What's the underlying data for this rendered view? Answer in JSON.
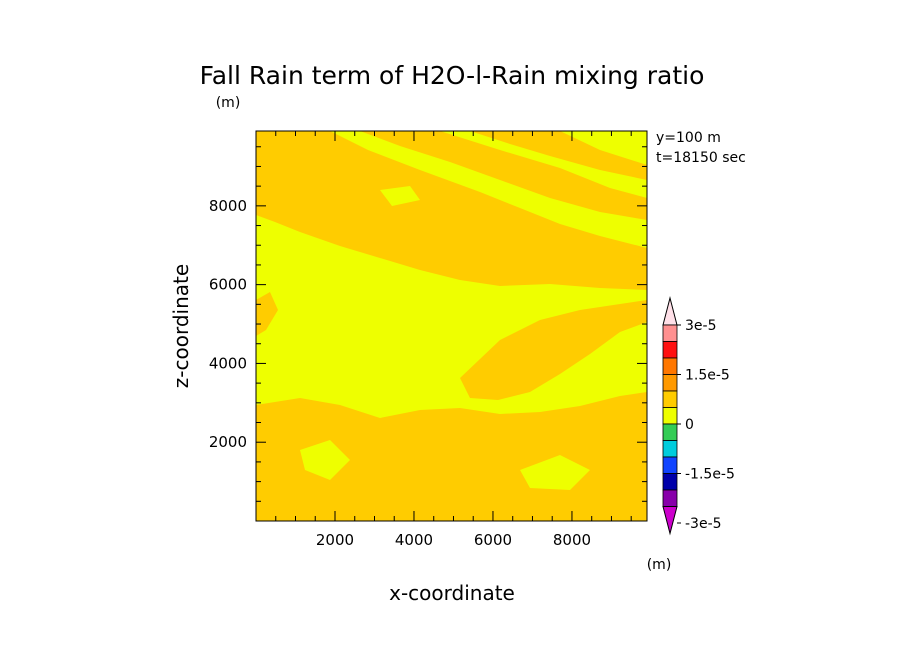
{
  "chart_data": {
    "type": "heatmap",
    "title": "Fall Rain term of H2O-l-Rain mixing ratio",
    "y_unit_label": "(m)",
    "xlabel": "x-coordinate",
    "ylabel": "z-coordinate",
    "annotations": [
      "y=100 m",
      "t=18150 sec"
    ],
    "xlim": [
      0,
      9900
    ],
    "ylim": [
      0,
      9900
    ],
    "x_ticks": [
      2000,
      4000,
      6000,
      8000
    ],
    "y_ticks": [
      2000,
      4000,
      6000,
      8000
    ],
    "x_tick_labels": [
      "2000",
      "4000",
      "6000",
      "8000"
    ],
    "y_tick_labels": [
      "2000",
      "4000",
      "6000",
      "8000"
    ],
    "field_colors": {
      "orange_band": "#ffcc00",
      "yellow_band": "#eeff00"
    },
    "colorbar": {
      "unit_label": "(m)",
      "levels": [
        "3e-5",
        "1.5e-5",
        "0",
        "-1.5e-5",
        "-3e-5"
      ],
      "colors": [
        "#ffe0e8",
        "#ff9090",
        "#ff1010",
        "#ff7700",
        "#ff9900",
        "#ffcc00",
        "#eeff00",
        "#33cc55",
        "#00ccdd",
        "#1144ff",
        "#0000aa",
        "#8800aa",
        "#cc00cc"
      ]
    }
  }
}
